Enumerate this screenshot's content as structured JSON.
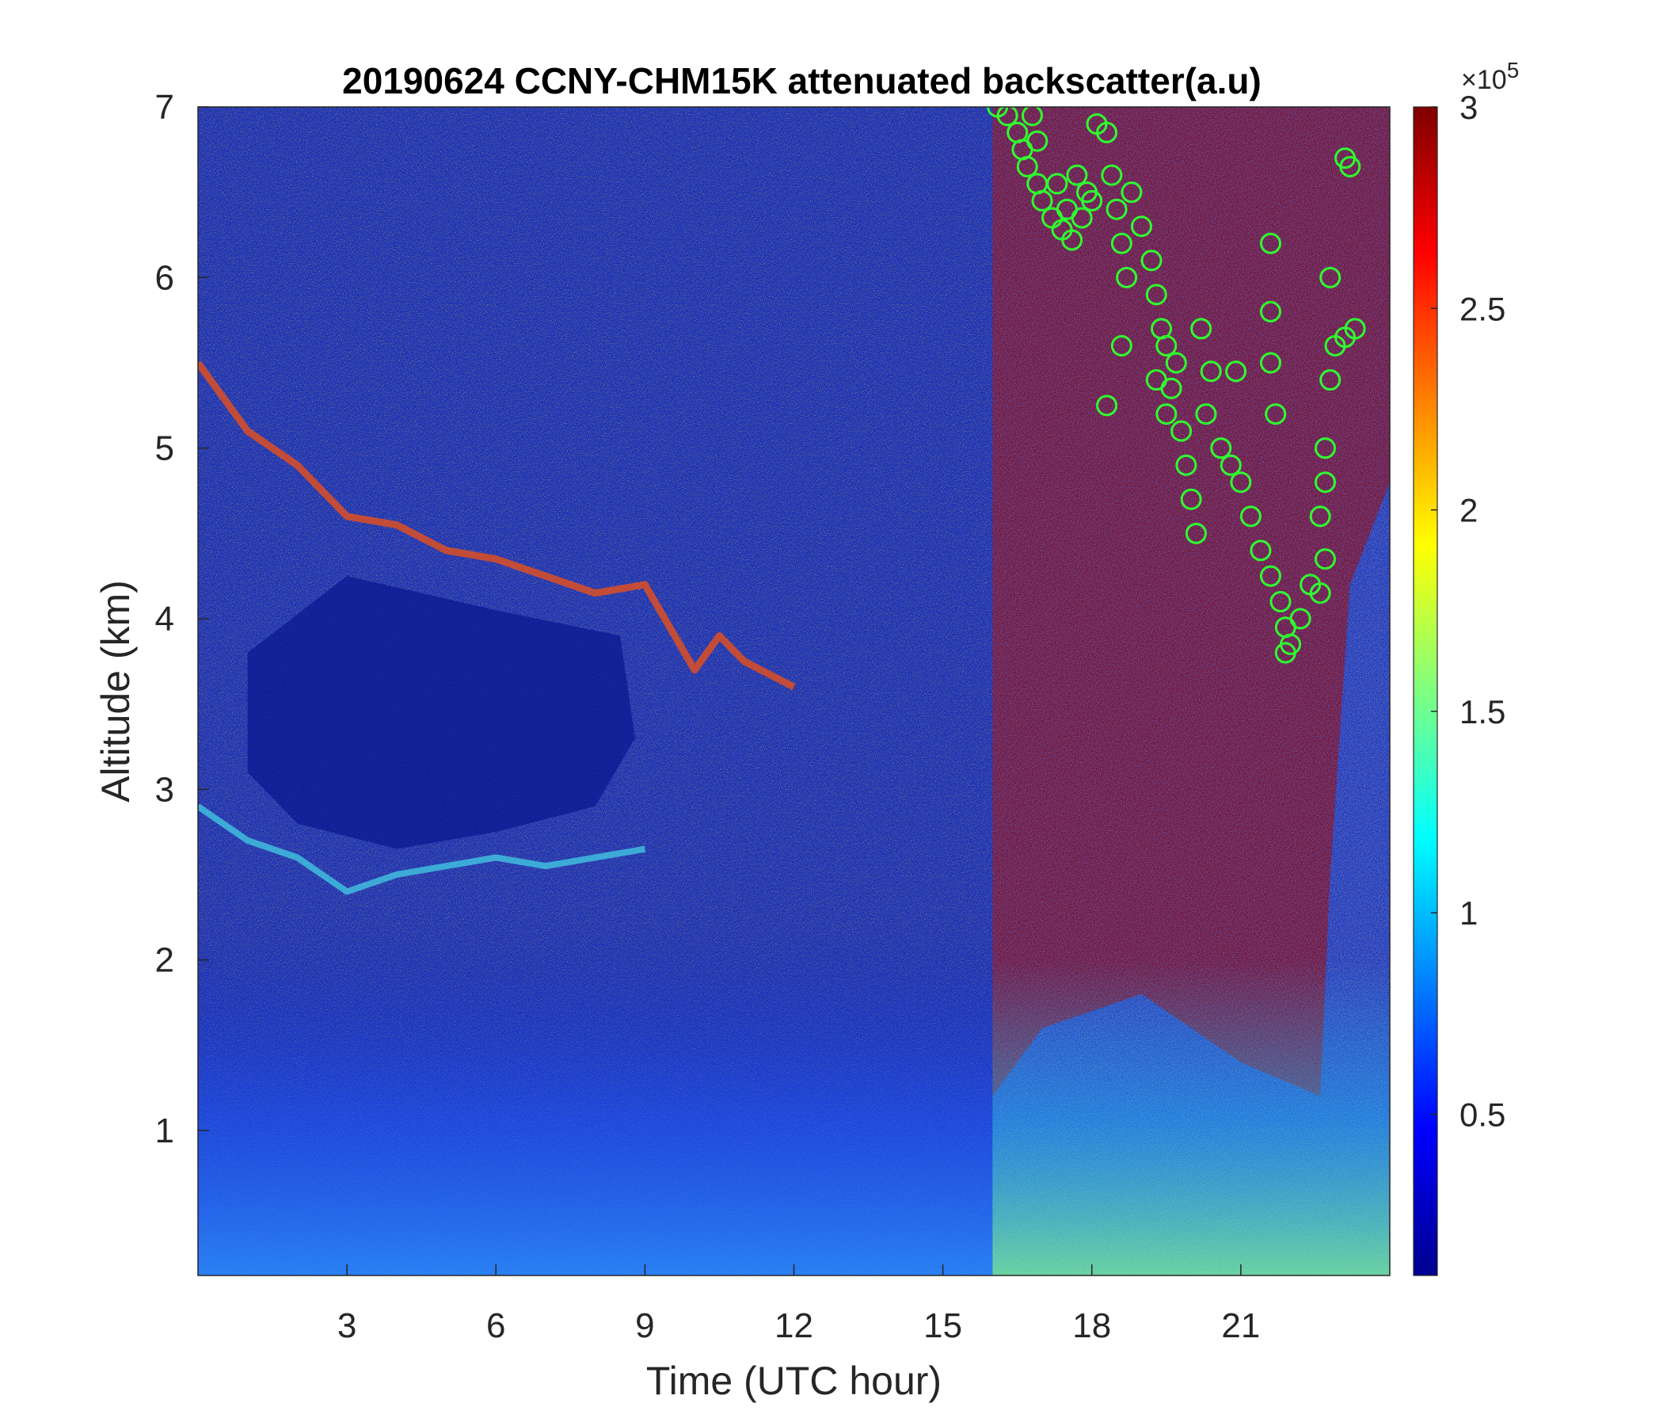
{
  "chart_data": {
    "type": "heatmap",
    "title": "20190624 CCNY-CHM15K attenuated backscatter(a.u)",
    "xlabel": "Time (UTC hour)",
    "ylabel": "Altitude (km)",
    "xlim": [
      0,
      24
    ],
    "ylim": [
      0.15,
      7
    ],
    "x_ticks": [
      3,
      6,
      9,
      12,
      15,
      18,
      21
    ],
    "y_ticks": [
      1,
      2,
      3,
      4,
      5,
      6,
      7
    ],
    "colorbar": {
      "colormap": "jet",
      "range": [
        0.1,
        3
      ],
      "ticks": [
        0.5,
        1,
        1.5,
        2,
        2.5,
        3
      ],
      "multiplier": "×10",
      "exponent": "5"
    },
    "features": {
      "aerosol_layer_top": {
        "x": [
          0,
          1,
          2,
          3,
          4,
          5,
          6,
          7,
          8,
          9,
          9.5,
          10,
          10.5,
          11,
          12
        ],
        "y": [
          5.5,
          5.1,
          4.9,
          4.6,
          4.55,
          4.4,
          4.35,
          4.25,
          4.15,
          4.2,
          3.95,
          3.7,
          3.9,
          3.75,
          3.6
        ]
      },
      "lower_layer_edge": {
        "x": [
          0,
          1,
          2,
          3,
          4,
          5,
          6,
          7,
          8,
          9
        ],
        "y": [
          2.9,
          2.7,
          2.6,
          2.4,
          2.5,
          2.55,
          2.6,
          2.55,
          2.6,
          2.65
        ]
      },
      "cloud_region_start_hour": 16
    },
    "cloud_base_series": {
      "name": "",
      "color": "#2eff2e",
      "marker": "circle",
      "points": [
        [
          16.1,
          7.0
        ],
        [
          16.3,
          6.95
        ],
        [
          16.5,
          6.85
        ],
        [
          16.6,
          6.75
        ],
        [
          16.7,
          6.65
        ],
        [
          16.9,
          6.55
        ],
        [
          17.0,
          6.45
        ],
        [
          17.2,
          6.35
        ],
        [
          17.4,
          6.28
        ],
        [
          17.6,
          6.22
        ],
        [
          17.8,
          6.35
        ],
        [
          18.0,
          6.45
        ],
        [
          16.8,
          6.95
        ],
        [
          16.9,
          6.8
        ],
        [
          17.3,
          6.55
        ],
        [
          17.5,
          6.4
        ],
        [
          17.7,
          6.6
        ],
        [
          17.9,
          6.5
        ],
        [
          18.1,
          6.9
        ],
        [
          18.3,
          6.85
        ],
        [
          18.4,
          6.6
        ],
        [
          18.5,
          6.4
        ],
        [
          18.6,
          6.2
        ],
        [
          18.7,
          6.0
        ],
        [
          18.8,
          6.5
        ],
        [
          19.0,
          6.3
        ],
        [
          19.2,
          6.1
        ],
        [
          19.3,
          5.9
        ],
        [
          19.4,
          5.7
        ],
        [
          18.6,
          5.6
        ],
        [
          19.3,
          5.4
        ],
        [
          19.5,
          5.2
        ],
        [
          19.6,
          5.35
        ],
        [
          19.8,
          5.1
        ],
        [
          19.9,
          4.9
        ],
        [
          20.0,
          4.7
        ],
        [
          20.1,
          4.5
        ],
        [
          19.7,
          5.5
        ],
        [
          20.2,
          5.7
        ],
        [
          20.4,
          5.45
        ],
        [
          20.3,
          5.2
        ],
        [
          20.6,
          5.0
        ],
        [
          20.8,
          4.9
        ],
        [
          21.0,
          4.8
        ],
        [
          21.2,
          4.6
        ],
        [
          21.4,
          4.4
        ],
        [
          21.6,
          4.25
        ],
        [
          21.8,
          4.1
        ],
        [
          21.9,
          3.95
        ],
        [
          22.0,
          3.85
        ],
        [
          21.9,
          3.8
        ],
        [
          22.2,
          4.0
        ],
        [
          22.4,
          4.2
        ],
        [
          22.6,
          4.15
        ],
        [
          22.7,
          4.35
        ],
        [
          21.6,
          5.5
        ],
        [
          21.7,
          5.2
        ],
        [
          21.6,
          6.2
        ],
        [
          21.6,
          5.8
        ],
        [
          22.6,
          4.6
        ],
        [
          22.7,
          5.0
        ],
        [
          22.8,
          5.4
        ],
        [
          22.9,
          5.6
        ],
        [
          23.1,
          5.65
        ],
        [
          23.3,
          5.7
        ],
        [
          22.8,
          6.0
        ],
        [
          23.1,
          6.7
        ],
        [
          23.2,
          6.65
        ],
        [
          22.7,
          4.8
        ],
        [
          18.3,
          5.25
        ],
        [
          19.5,
          5.6
        ],
        [
          20.9,
          5.45
        ]
      ]
    }
  }
}
